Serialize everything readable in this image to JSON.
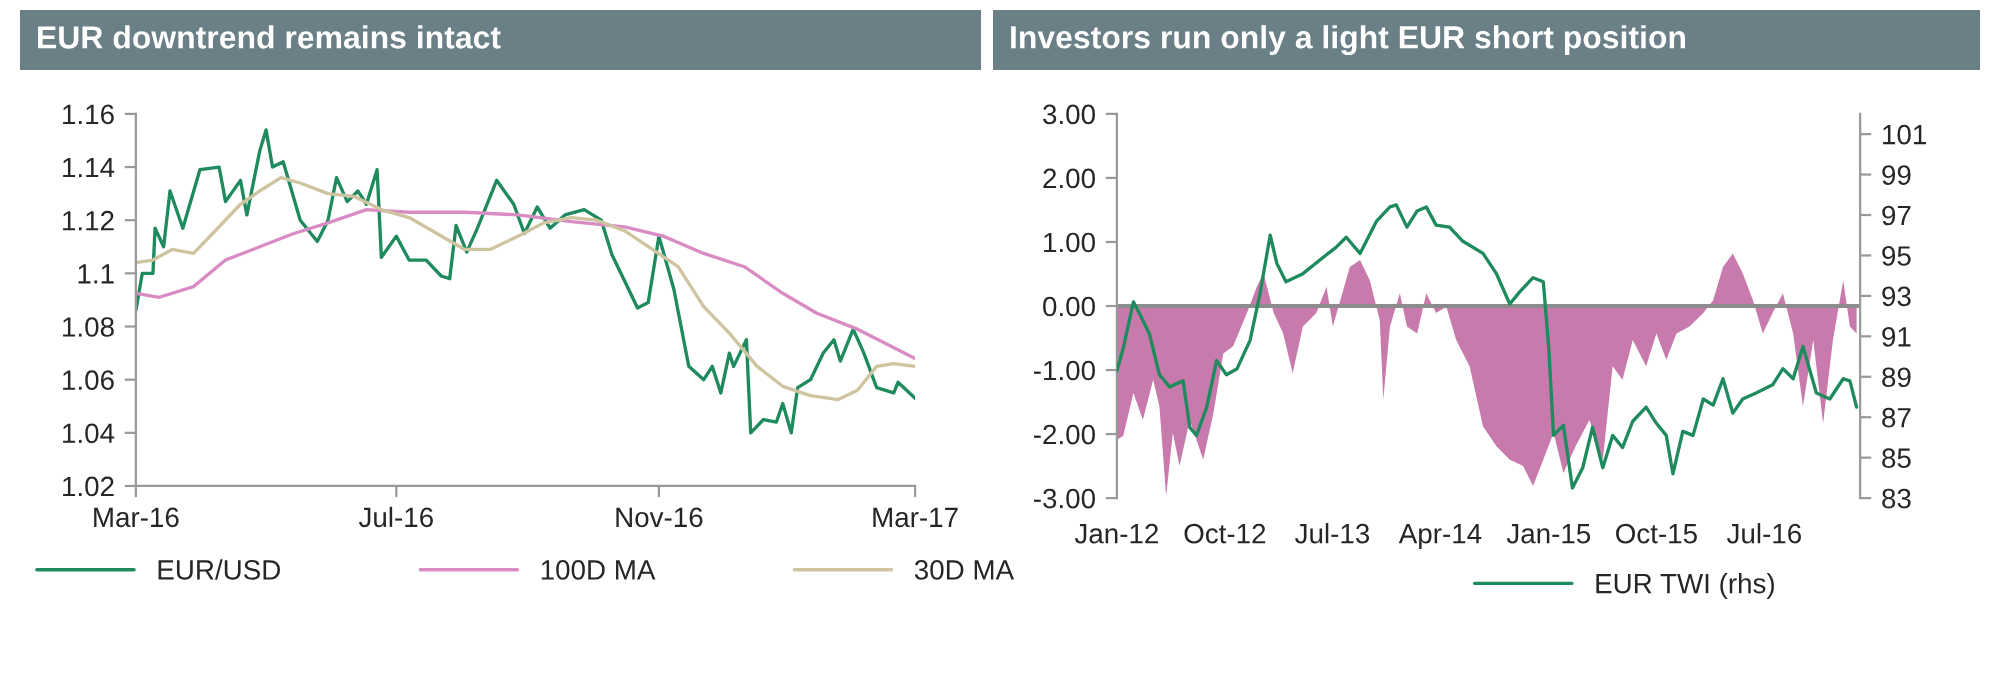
{
  "chart_data": [
    {
      "type": "line",
      "title": "EUR downtrend remains intact",
      "xlim": [
        "2016-03-01",
        "2017-03-01"
      ],
      "xticks": [
        {
          "value": "2016-03-01",
          "label": "Mar-16"
        },
        {
          "value": "2016-07-01",
          "label": "Jul-16"
        },
        {
          "value": "2016-11-01",
          "label": "Nov-16"
        },
        {
          "value": "2017-03-01",
          "label": "Mar-17"
        }
      ],
      "ylim": [
        1.02,
        1.16
      ],
      "yticks": [
        1.02,
        1.04,
        1.06,
        1.08,
        1.1,
        1.12,
        1.14,
        1.16
      ],
      "grid": false,
      "legend": "bottom",
      "marker": "none",
      "line_style": "solid",
      "series": [
        {
          "name": "EUR/USD",
          "color": "#1e8a5e",
          "x": [
            "2016-03-01",
            "2016-03-04",
            "2016-03-09",
            "2016-03-10",
            "2016-03-14",
            "2016-03-17",
            "2016-03-23",
            "2016-03-31",
            "2016-04-09",
            "2016-04-12",
            "2016-04-19",
            "2016-04-22",
            "2016-04-28",
            "2016-05-01",
            "2016-05-04",
            "2016-05-09",
            "2016-05-17",
            "2016-05-25",
            "2016-05-30",
            "2016-06-03",
            "2016-06-08",
            "2016-06-13",
            "2016-06-17",
            "2016-06-22",
            "2016-06-24",
            "2016-07-01",
            "2016-07-07",
            "2016-07-15",
            "2016-07-22",
            "2016-07-26",
            "2016-07-29",
            "2016-08-03",
            "2016-08-08",
            "2016-08-17",
            "2016-08-25",
            "2016-08-30",
            "2016-09-05",
            "2016-09-11",
            "2016-09-18",
            "2016-09-27",
            "2016-10-05",
            "2016-10-10",
            "2016-10-16",
            "2016-10-22",
            "2016-10-27",
            "2016-11-01",
            "2016-11-08",
            "2016-11-15",
            "2016-11-22",
            "2016-11-26",
            "2016-11-30",
            "2016-12-04",
            "2016-12-06",
            "2016-12-12",
            "2016-12-14",
            "2016-12-20",
            "2016-12-26",
            "2016-12-29",
            "2017-01-02",
            "2017-01-05",
            "2017-01-11",
            "2017-01-17",
            "2017-01-22",
            "2017-01-25",
            "2017-01-31",
            "2017-02-05",
            "2017-02-11",
            "2017-02-19",
            "2017-02-21",
            "2017-03-01"
          ],
          "values": [
            1.086,
            1.1,
            1.1,
            1.117,
            1.11,
            1.131,
            1.117,
            1.139,
            1.14,
            1.127,
            1.135,
            1.122,
            1.146,
            1.154,
            1.14,
            1.142,
            1.12,
            1.112,
            1.12,
            1.136,
            1.127,
            1.131,
            1.126,
            1.139,
            1.106,
            1.114,
            1.105,
            1.105,
            1.099,
            1.098,
            1.118,
            1.108,
            1.117,
            1.135,
            1.126,
            1.115,
            1.125,
            1.117,
            1.122,
            1.124,
            1.12,
            1.107,
            1.097,
            1.087,
            1.089,
            1.114,
            1.094,
            1.065,
            1.06,
            1.065,
            1.055,
            1.07,
            1.065,
            1.075,
            1.04,
            1.045,
            1.044,
            1.051,
            1.04,
            1.057,
            1.06,
            1.07,
            1.075,
            1.067,
            1.079,
            1.07,
            1.057,
            1.055,
            1.059,
            1.053
          ]
        },
        {
          "name": "100D MA",
          "color": "#d98cc4",
          "x": [
            "2016-03-01",
            "2016-03-12",
            "2016-03-28",
            "2016-04-12",
            "2016-04-28",
            "2016-05-14",
            "2016-05-30",
            "2016-06-17",
            "2016-07-07",
            "2016-08-02",
            "2016-08-27",
            "2016-09-21",
            "2016-10-16",
            "2016-11-03",
            "2016-11-22",
            "2016-12-11",
            "2016-12-29",
            "2017-01-14",
            "2017-02-02",
            "2017-02-18",
            "2017-03-01"
          ],
          "values": [
            1.0925,
            1.091,
            1.095,
            1.105,
            1.11,
            1.115,
            1.119,
            1.124,
            1.123,
            1.123,
            1.122,
            1.1195,
            1.1175,
            1.114,
            1.1075,
            1.1025,
            1.0925,
            1.085,
            1.079,
            1.0725,
            1.068
          ]
        },
        {
          "name": "30D MA",
          "color": "#cfc4a0",
          "x": [
            "2016-03-01",
            "2016-03-09",
            "2016-03-18",
            "2016-03-28",
            "2016-04-06",
            "2016-04-19",
            "2016-04-28",
            "2016-05-08",
            "2016-05-17",
            "2016-05-30",
            "2016-06-11",
            "2016-06-24",
            "2016-07-07",
            "2016-07-20",
            "2016-08-02",
            "2016-08-14",
            "2016-08-27",
            "2016-09-08",
            "2016-09-21",
            "2016-10-03",
            "2016-10-16",
            "2016-10-29",
            "2016-11-10",
            "2016-11-22",
            "2016-12-04",
            "2016-12-17",
            "2016-12-29",
            "2017-01-11",
            "2017-01-24",
            "2017-02-02",
            "2017-02-11",
            "2017-02-19",
            "2017-03-01"
          ],
          "values": [
            1.104,
            1.105,
            1.109,
            1.1075,
            1.115,
            1.126,
            1.131,
            1.136,
            1.134,
            1.13,
            1.129,
            1.124,
            1.121,
            1.115,
            1.109,
            1.109,
            1.114,
            1.119,
            1.121,
            1.12,
            1.116,
            1.109,
            1.1025,
            1.0875,
            1.0775,
            1.065,
            1.0575,
            1.054,
            1.0525,
            1.056,
            1.065,
            1.066,
            1.065
          ]
        }
      ]
    },
    {
      "type": "area",
      "title": "Investors run only a light EUR short position",
      "xlim": [
        "2012-01-01",
        "2017-03-01"
      ],
      "xticks": [
        {
          "value": "2012-01-01",
          "label": "Jan-12"
        },
        {
          "value": "2012-10-01",
          "label": "Oct-12"
        },
        {
          "value": "2013-07-01",
          "label": "Jul-13"
        },
        {
          "value": "2014-04-01",
          "label": "Apr-14"
        },
        {
          "value": "2015-01-01",
          "label": "Jan-15"
        },
        {
          "value": "2015-10-01",
          "label": "Oct-15"
        },
        {
          "value": "2016-07-01",
          "label": "Jul-16"
        }
      ],
      "ylim": [
        -3,
        3
      ],
      "yticks": [
        {
          "value": -3,
          "label": "-3.00"
        },
        {
          "value": -2,
          "label": "-2.00"
        },
        {
          "value": -1,
          "label": "-1.00"
        },
        {
          "value": 0,
          "label": "0.00"
        },
        {
          "value": 1,
          "label": "1.00"
        },
        {
          "value": 2,
          "label": "2.00"
        },
        {
          "value": 3,
          "label": "3.00"
        }
      ],
      "y2lim": [
        83,
        102
      ],
      "y2ticks": [
        83,
        85,
        87,
        89,
        91,
        93,
        95,
        97,
        99,
        101
      ],
      "ref_lines": [
        {
          "axis": "y",
          "value": 0,
          "color": "#8c8c8c"
        }
      ],
      "grid": false,
      "legend": "bottom",
      "marker": "none",
      "line_style": "solid",
      "series": [
        {
          "type": "area",
          "color": "#c87aad",
          "x": [
            "2012-01-01",
            "2012-01-17",
            "2012-02-12",
            "2012-03-07",
            "2012-04-02",
            "2012-04-18",
            "2012-05-05",
            "2012-05-22",
            "2012-06-08",
            "2012-07-04",
            "2012-08-07",
            "2012-09-02",
            "2012-09-27",
            "2012-10-22",
            "2012-11-26",
            "2012-12-21",
            "2013-01-07",
            "2013-02-02",
            "2013-02-26",
            "2013-03-22",
            "2013-04-17",
            "2013-05-21",
            "2013-06-16",
            "2013-07-02",
            "2013-08-14",
            "2013-09-09",
            "2013-10-04",
            "2013-10-29",
            "2013-11-07",
            "2013-11-24",
            "2013-12-19",
            "2014-01-06",
            "2014-02-01",
            "2014-02-24",
            "2014-03-21",
            "2014-04-16",
            "2014-05-11",
            "2014-06-14",
            "2014-07-18",
            "2014-08-21",
            "2014-09-24",
            "2014-10-28",
            "2014-11-22",
            "2014-12-18",
            "2015-01-13",
            "2015-02-07",
            "2015-03-10",
            "2015-04-14",
            "2015-05-18",
            "2015-06-12",
            "2015-07-07",
            "2015-08-02",
            "2015-09-05",
            "2015-10-01",
            "2015-10-26",
            "2015-11-21",
            "2015-12-24",
            "2016-01-28",
            "2016-02-22",
            "2016-03-18",
            "2016-04-12",
            "2016-05-07",
            "2016-06-02",
            "2016-06-27",
            "2016-07-22",
            "2016-08-17",
            "2016-09-12",
            "2016-10-07",
            "2016-11-02",
            "2016-11-27",
            "2016-12-22",
            "2017-01-17",
            "2017-02-03",
            "2017-02-20"
          ],
          "values": [
            -2.09,
            -2.03,
            -1.36,
            -1.78,
            -1.15,
            -1.57,
            -2.97,
            -1.98,
            -2.5,
            -1.78,
            -2.4,
            -1.67,
            -0.74,
            -0.63,
            -0.11,
            0.3,
            0.51,
            -0.11,
            -0.43,
            -1.05,
            -0.32,
            -0.11,
            0.3,
            -0.32,
            0.61,
            0.72,
            0.4,
            -0.22,
            -1.46,
            -0.32,
            0.2,
            -0.32,
            -0.43,
            0.2,
            -0.11,
            -0.01,
            -0.53,
            -0.94,
            -1.88,
            -2.19,
            -2.4,
            -2.5,
            -2.81,
            -2.4,
            -1.98,
            -2.61,
            -2.19,
            -1.78,
            -2.4,
            -0.94,
            -1.15,
            -0.53,
            -0.94,
            -0.43,
            -0.84,
            -0.43,
            -0.32,
            -0.11,
            0.09,
            0.61,
            0.82,
            0.51,
            0.09,
            -0.43,
            -0.11,
            0.2,
            -0.43,
            -1.57,
            -0.53,
            -1.83,
            -0.53,
            0.4,
            -0.32,
            -0.43
          ]
        },
        {
          "type": "line",
          "axis": "y2",
          "name": "EUR TWI (rhs)",
          "color": "#1e8a5e",
          "x": [
            "2012-01-01",
            "2012-01-17",
            "2012-02-12",
            "2012-02-28",
            "2012-03-24",
            "2012-04-18",
            "2012-05-14",
            "2012-06-17",
            "2012-07-04",
            "2012-07-21",
            "2012-08-16",
            "2012-09-10",
            "2012-10-05",
            "2012-11-01",
            "2012-12-04",
            "2012-12-29",
            "2013-01-24",
            "2013-02-10",
            "2013-03-05",
            "2013-04-17",
            "2013-06-07",
            "2013-07-10",
            "2013-08-05",
            "2013-09-09",
            "2013-10-21",
            "2013-11-24",
            "2013-12-10",
            "2014-01-06",
            "2014-02-01",
            "2014-02-24",
            "2014-03-21",
            "2014-04-24",
            "2014-05-28",
            "2014-07-18",
            "2014-08-21",
            "2014-09-24",
            "2014-10-19",
            "2014-11-22",
            "2014-12-18",
            "2015-01-01",
            "2015-01-13",
            "2015-02-07",
            "2015-03-02",
            "2015-03-28",
            "2015-04-22",
            "2015-05-18",
            "2015-06-12",
            "2015-07-07",
            "2015-08-02",
            "2015-09-05",
            "2015-10-01",
            "2015-10-26",
            "2015-11-12",
            "2015-12-07",
            "2016-01-02",
            "2016-01-28",
            "2016-02-22",
            "2016-03-18",
            "2016-04-12",
            "2016-05-07",
            "2016-06-10",
            "2016-07-22",
            "2016-08-17",
            "2016-09-12",
            "2016-10-07",
            "2016-11-10",
            "2016-12-14",
            "2017-01-17",
            "2017-02-03",
            "2017-02-20"
          ],
          "values": [
            89.3,
            90.4,
            92.7,
            92.1,
            91.1,
            89.1,
            88.5,
            88.8,
            86.5,
            86.1,
            87.5,
            89.8,
            89.1,
            89.4,
            90.8,
            93.1,
            96.0,
            94.6,
            93.7,
            94.1,
            94.9,
            95.4,
            95.9,
            95.1,
            96.7,
            97.4,
            97.5,
            96.4,
            97.2,
            97.4,
            96.5,
            96.4,
            95.7,
            95.1,
            94.1,
            92.6,
            93.2,
            93.9,
            93.7,
            90.4,
            86.1,
            86.6,
            83.5,
            84.5,
            86.5,
            84.5,
            86.1,
            85.5,
            86.8,
            87.5,
            86.7,
            86.1,
            84.2,
            86.3,
            86.1,
            87.9,
            87.6,
            88.9,
            87.2,
            87.9,
            88.2,
            88.6,
            89.4,
            88.9,
            90.5,
            88.2,
            87.9,
            88.9,
            88.8,
            87.5
          ]
        }
      ]
    }
  ]
}
